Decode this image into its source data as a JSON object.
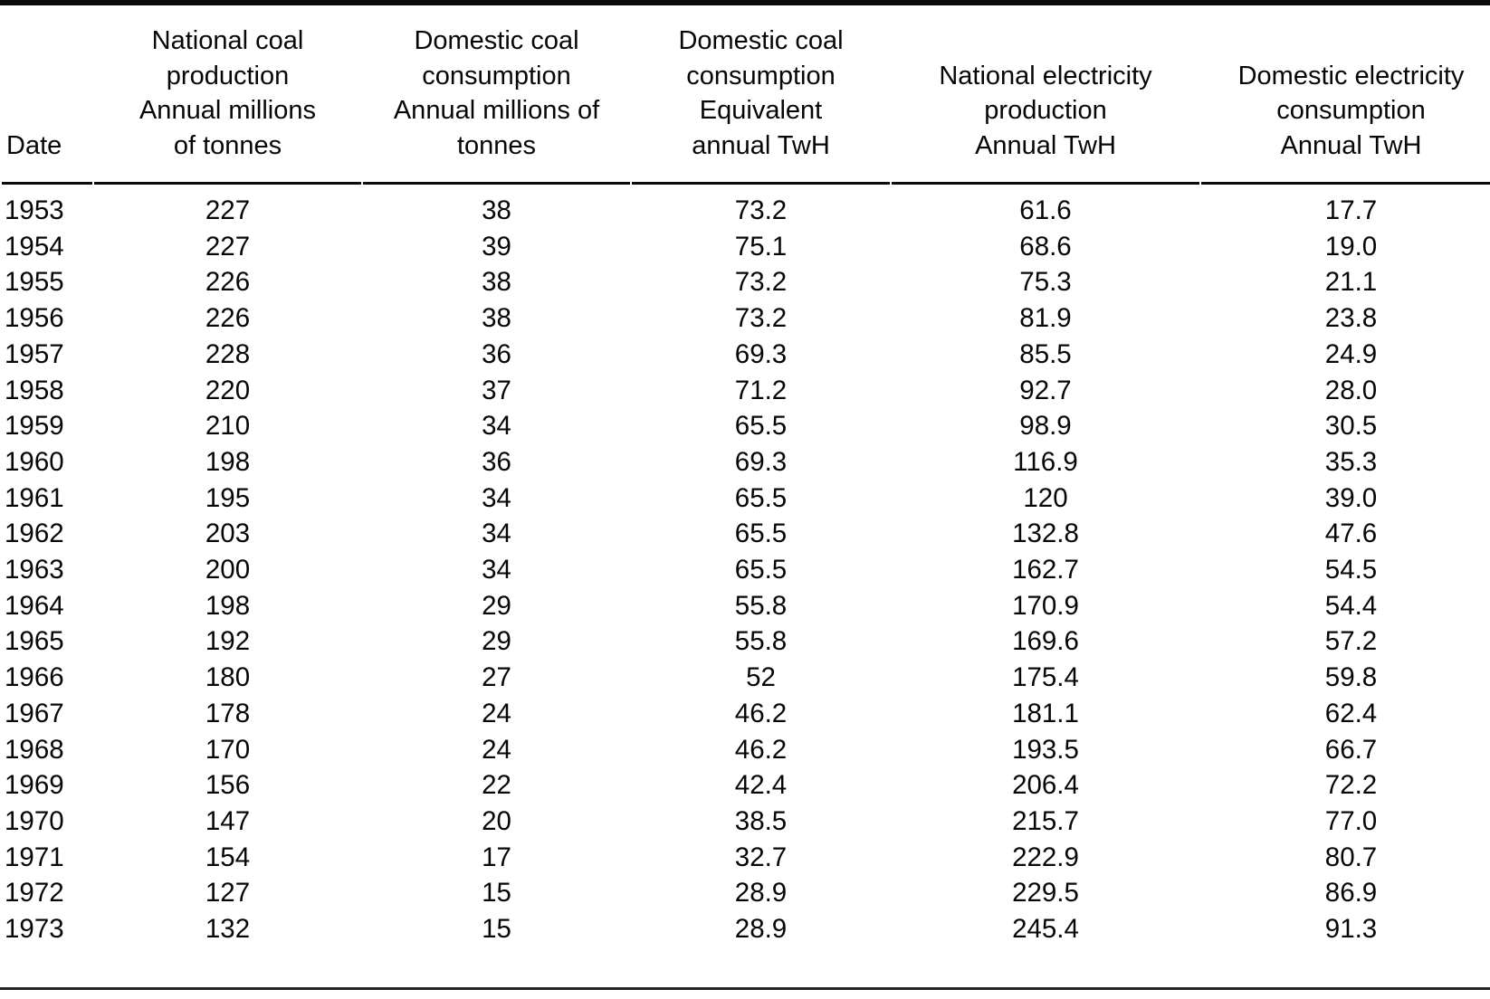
{
  "page": {
    "background_color": "#ffffff",
    "text_color": "#060606",
    "rule_color": "#0a0a0a"
  },
  "table": {
    "columns": [
      {
        "key": "date",
        "header": "Date"
      },
      {
        "key": "national_coal_production",
        "header": "National coal\nproduction\nAnnual millions\nof tonnes"
      },
      {
        "key": "domestic_coal_consumption",
        "header": "Domestic coal\nconsumption\nAnnual millions of\ntonnes"
      },
      {
        "key": "domestic_coal_consumption_equivalent",
        "header": "Domestic coal\nconsumption\nEquivalent\nannual TwH"
      },
      {
        "key": "national_electricity_production",
        "header": "National electricity\nproduction\nAnnual TwH"
      },
      {
        "key": "domestic_electricity_consumption",
        "header": "Domestic electricity\nconsumption\nAnnual TwH"
      }
    ],
    "rows": [
      [
        "1953",
        "227",
        "38",
        "73.2",
        "61.6",
        "17.7"
      ],
      [
        "1954",
        "227",
        "39",
        "75.1",
        "68.6",
        "19.0"
      ],
      [
        "1955",
        "226",
        "38",
        "73.2",
        "75.3",
        "21.1"
      ],
      [
        "1956",
        "226",
        "38",
        "73.2",
        "81.9",
        "23.8"
      ],
      [
        "1957",
        "228",
        "36",
        "69.3",
        "85.5",
        "24.9"
      ],
      [
        "1958",
        "220",
        "37",
        "71.2",
        "92.7",
        "28.0"
      ],
      [
        "1959",
        "210",
        "34",
        "65.5",
        "98.9",
        "30.5"
      ],
      [
        "1960",
        "198",
        "36",
        "69.3",
        "116.9",
        "35.3"
      ],
      [
        "1961",
        "195",
        "34",
        "65.5",
        "120",
        "39.0"
      ],
      [
        "1962",
        "203",
        "34",
        "65.5",
        "132.8",
        "47.6"
      ],
      [
        "1963",
        "200",
        "34",
        "65.5",
        "162.7",
        "54.5"
      ],
      [
        "1964",
        "198",
        "29",
        "55.8",
        "170.9",
        "54.4"
      ],
      [
        "1965",
        "192",
        "29",
        "55.8",
        "169.6",
        "57.2"
      ],
      [
        "1966",
        "180",
        "27",
        "52",
        "175.4",
        "59.8"
      ],
      [
        "1967",
        "178",
        "24",
        "46.2",
        "181.1",
        "62.4"
      ],
      [
        "1968",
        "170",
        "24",
        "46.2",
        "193.5",
        "66.7"
      ],
      [
        "1969",
        "156",
        "22",
        "42.4",
        "206.4",
        "72.2"
      ],
      [
        "1970",
        "147",
        "20",
        "38.5",
        "215.7",
        "77.0"
      ],
      [
        "1971",
        "154",
        "17",
        "32.7",
        "222.9",
        "80.7"
      ],
      [
        "1972",
        "127",
        "15",
        "28.9",
        "229.5",
        "86.9"
      ],
      [
        "1973",
        "132",
        "15",
        "28.9",
        "245.4",
        "91.3"
      ]
    ]
  },
  "chart_data": {
    "type": "table",
    "x": [
      1953,
      1954,
      1955,
      1956,
      1957,
      1958,
      1959,
      1960,
      1961,
      1962,
      1963,
      1964,
      1965,
      1966,
      1967,
      1968,
      1969,
      1970,
      1971,
      1972,
      1973
    ],
    "series": [
      {
        "name": "National coal production (annual millions of tonnes)",
        "values": [
          227,
          227,
          226,
          226,
          228,
          220,
          210,
          198,
          195,
          203,
          200,
          198,
          192,
          180,
          178,
          170,
          156,
          147,
          154,
          127,
          132
        ]
      },
      {
        "name": "Domestic coal consumption (annual millions of tonnes)",
        "values": [
          38,
          39,
          38,
          38,
          36,
          37,
          34,
          36,
          34,
          34,
          34,
          29,
          29,
          27,
          24,
          24,
          22,
          20,
          17,
          15,
          15
        ]
      },
      {
        "name": "Domestic coal consumption equivalent (annual TwH)",
        "values": [
          73.2,
          75.1,
          73.2,
          73.2,
          69.3,
          71.2,
          65.5,
          69.3,
          65.5,
          65.5,
          65.5,
          55.8,
          55.8,
          52,
          46.2,
          46.2,
          42.4,
          38.5,
          32.7,
          28.9,
          28.9
        ]
      },
      {
        "name": "National electricity production (annual TwH)",
        "values": [
          61.6,
          68.6,
          75.3,
          81.9,
          85.5,
          92.7,
          98.9,
          116.9,
          120,
          132.8,
          162.7,
          170.9,
          169.6,
          175.4,
          181.1,
          193.5,
          206.4,
          215.7,
          222.9,
          229.5,
          245.4
        ]
      },
      {
        "name": "Domestic electricity consumption (annual TwH)",
        "values": [
          17.7,
          19.0,
          21.1,
          23.8,
          24.9,
          28.0,
          30.5,
          35.3,
          39.0,
          47.6,
          54.5,
          54.4,
          57.2,
          59.8,
          62.4,
          66.7,
          72.2,
          77.0,
          80.7,
          86.9,
          91.3
        ]
      }
    ]
  }
}
